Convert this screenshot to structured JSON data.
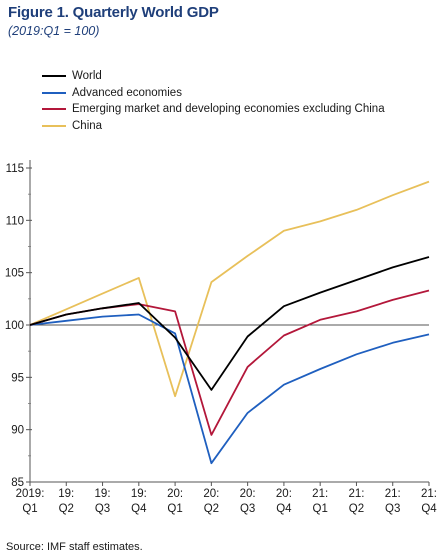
{
  "header": {
    "title": "Figure 1. Quarterly World GDP",
    "subtitle": "(2019:Q1 = 100)"
  },
  "footer": {
    "source": "Source: IMF staff estimates."
  },
  "chart_data": {
    "type": "line",
    "title": "Figure 1. Quarterly World GDP",
    "subtitle": "(2019:Q1 = 100)",
    "xlabel": "",
    "ylabel": "",
    "ylim": [
      85,
      115
    ],
    "yticks": [
      85,
      90,
      95,
      100,
      105,
      110,
      115
    ],
    "reference_line": 100,
    "legend_position": "top-left",
    "categories": [
      [
        "2019:",
        "Q1"
      ],
      [
        "19:",
        "Q2"
      ],
      [
        "19:",
        "Q3"
      ],
      [
        "19:",
        "Q4"
      ],
      [
        "20:",
        "Q1"
      ],
      [
        "20:",
        "Q2"
      ],
      [
        "20:",
        "Q3"
      ],
      [
        "20:",
        "Q4"
      ],
      [
        "21:",
        "Q1"
      ],
      [
        "21:",
        "Q2"
      ],
      [
        "21:",
        "Q3"
      ],
      [
        "21:",
        "Q4"
      ]
    ],
    "series": [
      {
        "name": "World",
        "color": "#000000",
        "values": [
          100,
          101.0,
          101.6,
          102.1,
          98.8,
          93.8,
          98.9,
          101.8,
          103.1,
          104.3,
          105.5,
          106.5
        ]
      },
      {
        "name": "Advanced economies",
        "color": "#1f5fbf",
        "values": [
          100,
          100.4,
          100.8,
          101.0,
          99.2,
          86.8,
          91.6,
          94.3,
          95.8,
          97.2,
          98.3,
          99.1
        ]
      },
      {
        "name": "Emerging market and developing economies excluding China",
        "color": "#b3173a",
        "values": [
          100,
          101.0,
          101.6,
          102.0,
          101.3,
          89.5,
          96.0,
          99.0,
          100.5,
          101.3,
          102.4,
          103.3
        ]
      },
      {
        "name": "China",
        "color": "#e8c05a",
        "values": [
          100,
          101.5,
          103.0,
          104.5,
          93.2,
          104.1,
          106.6,
          109.0,
          109.9,
          111.0,
          112.4,
          113.7
        ]
      }
    ]
  }
}
